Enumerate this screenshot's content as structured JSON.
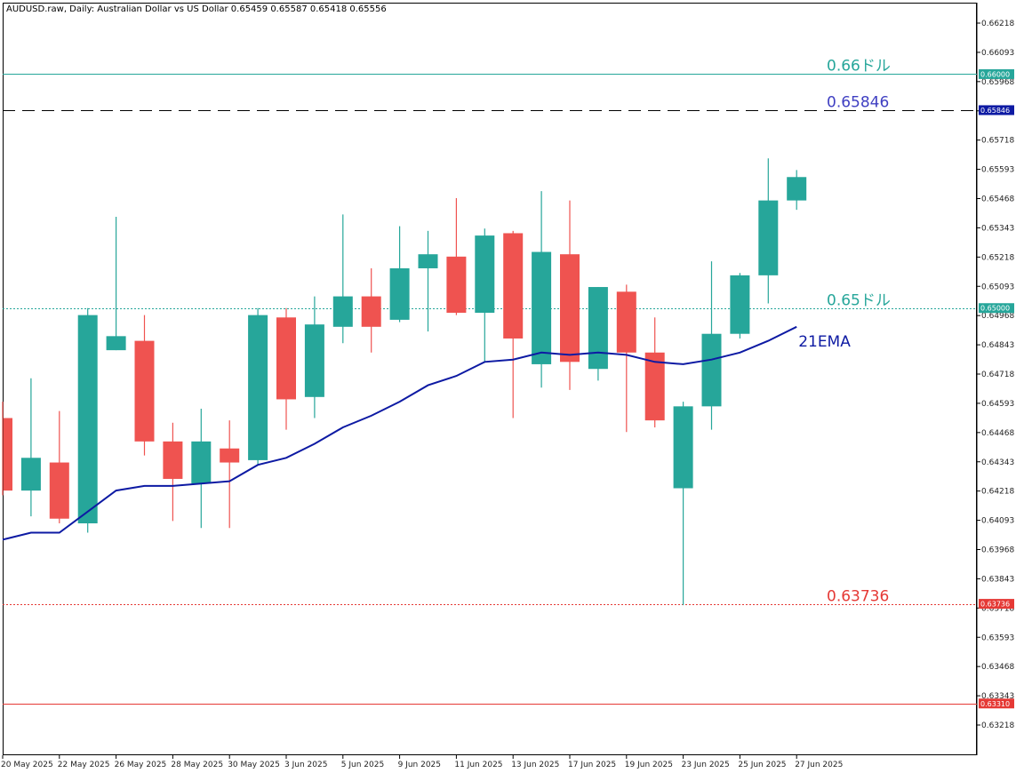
{
  "header": {
    "text": "AUDUSD.raw, Daily:  Australian Dollar vs US Dollar  0.65459 0.65587 0.65418 0.65556"
  },
  "colors": {
    "bull": "#26a69a",
    "bear": "#ef5350",
    "ema": "#0d1aa3",
    "level_066": "#26a69a",
    "level_06585": "#000000",
    "level_065": "#26a69a",
    "level_06374": "#e53935",
    "level_06331": "#e53935",
    "tag_06585": "#0d1aa3"
  },
  "chart_data": {
    "type": "candlestick",
    "symbol": "AUDUSD.raw",
    "timeframe": "Daily",
    "ylim": [
      0.6314,
      0.6628
    ],
    "y_ticks": [
      "0.66218",
      "0.66093",
      "0.65968",
      "0.65843",
      "0.65718",
      "0.65593",
      "0.65468",
      "0.65343",
      "0.65218",
      "0.65093",
      "0.64968",
      "0.64843",
      "0.64718",
      "0.64593",
      "0.64468",
      "0.64343",
      "0.64218",
      "0.64093",
      "0.63968",
      "0.63843",
      "0.63718",
      "0.63593",
      "0.63468",
      "0.63343",
      "0.63218"
    ],
    "x_ticks": [
      {
        "label": "20 May 2025",
        "index": 0
      },
      {
        "label": "22 May 2025",
        "index": 2
      },
      {
        "label": "26 May 2025",
        "index": 4
      },
      {
        "label": "28 May 2025",
        "index": 6
      },
      {
        "label": "30 May 2025",
        "index": 8
      },
      {
        "label": "3 Jun 2025",
        "index": 10
      },
      {
        "label": "5 Jun 2025",
        "index": 12
      },
      {
        "label": "9 Jun 2025",
        "index": 14
      },
      {
        "label": "11 Jun 2025",
        "index": 16
      },
      {
        "label": "13 Jun 2025",
        "index": 18
      },
      {
        "label": "17 Jun 2025",
        "index": 20
      },
      {
        "label": "19 Jun 2025",
        "index": 22
      },
      {
        "label": "23 Jun 2025",
        "index": 24
      },
      {
        "label": "25 Jun 2025",
        "index": 26
      },
      {
        "label": "27 Jun 2025",
        "index": 28
      }
    ],
    "candles": [
      {
        "o": 0.6453,
        "h": 0.646,
        "l": 0.642,
        "c": 0.6422
      },
      {
        "o": 0.6422,
        "h": 0.647,
        "l": 0.6411,
        "c": 0.6436
      },
      {
        "o": 0.6434,
        "h": 0.6456,
        "l": 0.6408,
        "c": 0.641
      },
      {
        "o": 0.6408,
        "h": 0.65,
        "l": 0.6404,
        "c": 0.6497
      },
      {
        "o": 0.6482,
        "h": 0.6539,
        "l": 0.6482,
        "c": 0.6488
      },
      {
        "o": 0.6486,
        "h": 0.6497,
        "l": 0.6437,
        "c": 0.6443
      },
      {
        "o": 0.6443,
        "h": 0.6451,
        "l": 0.6409,
        "c": 0.6427
      },
      {
        "o": 0.6425,
        "h": 0.6457,
        "l": 0.6406,
        "c": 0.6443
      },
      {
        "o": 0.644,
        "h": 0.6452,
        "l": 0.6406,
        "c": 0.6434
      },
      {
        "o": 0.6435,
        "h": 0.65,
        "l": 0.6433,
        "c": 0.6497
      },
      {
        "o": 0.6496,
        "h": 0.65,
        "l": 0.6448,
        "c": 0.6461
      },
      {
        "o": 0.6462,
        "h": 0.6505,
        "l": 0.6453,
        "c": 0.6493
      },
      {
        "o": 0.6492,
        "h": 0.654,
        "l": 0.6485,
        "c": 0.6505
      },
      {
        "o": 0.6505,
        "h": 0.6517,
        "l": 0.6481,
        "c": 0.6492
      },
      {
        "o": 0.6495,
        "h": 0.6535,
        "l": 0.6494,
        "c": 0.6517
      },
      {
        "o": 0.6517,
        "h": 0.6533,
        "l": 0.649,
        "c": 0.6523
      },
      {
        "o": 0.6522,
        "h": 0.6547,
        "l": 0.6497,
        "c": 0.6498
      },
      {
        "o": 0.6498,
        "h": 0.6534,
        "l": 0.6477,
        "c": 0.6531
      },
      {
        "o": 0.6532,
        "h": 0.6533,
        "l": 0.6453,
        "c": 0.6487
      },
      {
        "o": 0.6476,
        "h": 0.655,
        "l": 0.6466,
        "c": 0.6524
      },
      {
        "o": 0.6523,
        "h": 0.6546,
        "l": 0.6465,
        "c": 0.6477
      },
      {
        "o": 0.6474,
        "h": 0.6509,
        "l": 0.6469,
        "c": 0.6509
      },
      {
        "o": 0.6507,
        "h": 0.651,
        "l": 0.6447,
        "c": 0.6481
      },
      {
        "o": 0.6481,
        "h": 0.6496,
        "l": 0.6449,
        "c": 0.6452
      },
      {
        "o": 0.6423,
        "h": 0.646,
        "l": 0.6373,
        "c": 0.6458
      },
      {
        "o": 0.6458,
        "h": 0.652,
        "l": 0.6448,
        "c": 0.6489
      },
      {
        "o": 0.6489,
        "h": 0.6515,
        "l": 0.6487,
        "c": 0.6514
      },
      {
        "o": 0.6514,
        "h": 0.6564,
        "l": 0.6502,
        "c": 0.6546
      },
      {
        "o": 0.6546,
        "h": 0.6559,
        "l": 0.6542,
        "c": 0.6556
      }
    ],
    "ema": {
      "label": "21EMA",
      "values": [
        0.6401,
        0.6404,
        0.6404,
        0.6413,
        0.6422,
        0.6424,
        0.6424,
        0.6425,
        0.6426,
        0.6433,
        0.6436,
        0.6442,
        0.6449,
        0.6454,
        0.646,
        0.6467,
        0.6471,
        0.6477,
        0.6478,
        0.6481,
        0.648,
        0.6481,
        0.648,
        0.6477,
        0.6476,
        0.6478,
        0.6481,
        0.6486,
        0.6492
      ]
    },
    "levels": [
      {
        "value": 0.66,
        "label": "0.66ドル",
        "tag": "0.66000",
        "style": "solid",
        "color_key": "level_066",
        "label_color": "#26a69a",
        "tag_color": "#26a69a"
      },
      {
        "value": 0.65846,
        "label": "0.65846",
        "tag": "0.65846",
        "style": "dashed-long",
        "color_key": "level_06585",
        "label_color": "#3f3fc2",
        "tag_color": "#0d1aa3"
      },
      {
        "value": 0.65,
        "label": "0.65ドル",
        "tag": "0.65000",
        "style": "dotted",
        "color_key": "level_065",
        "label_color": "#26a69a",
        "tag_color": "#26a69a"
      },
      {
        "value": 0.63736,
        "label": "0.63736",
        "tag": "0.63736",
        "style": "dotted",
        "color_key": "level_06374",
        "label_color": "#e53935",
        "tag_color": "#e53935"
      },
      {
        "value": 0.6331,
        "label": "",
        "tag": "0.63310",
        "style": "solid",
        "color_key": "level_06331",
        "label_color": "#e53935",
        "tag_color": "#e53935"
      }
    ]
  }
}
